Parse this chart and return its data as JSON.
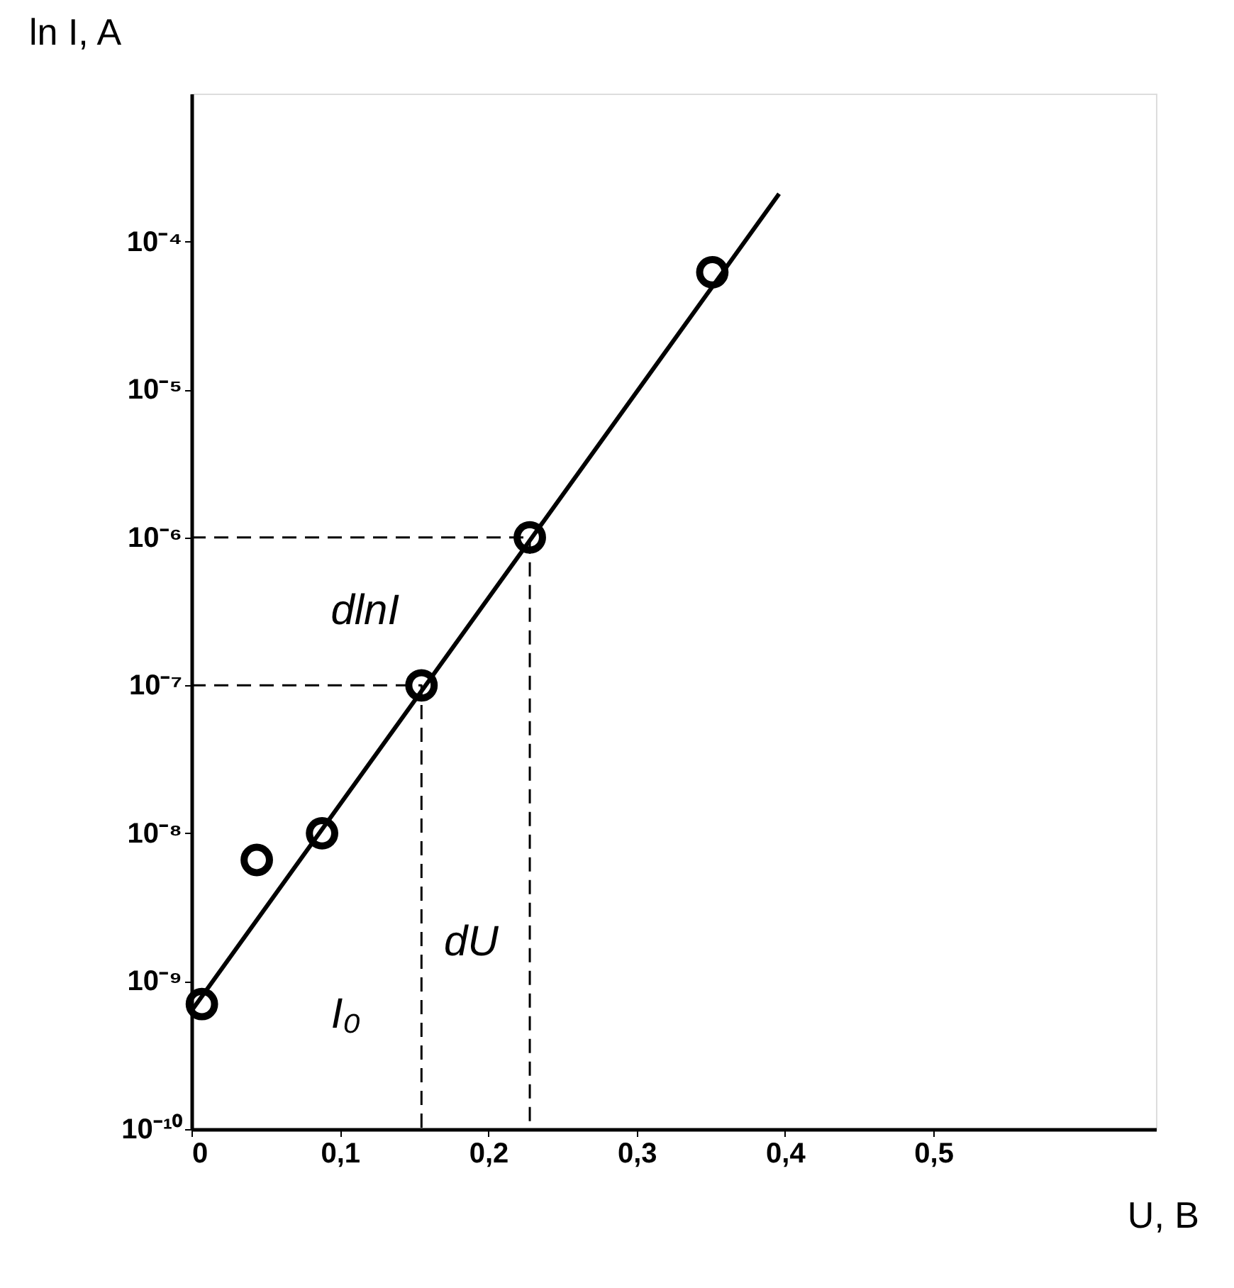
{
  "chart_data": {
    "type": "scatter",
    "xlabel": "U, B",
    "ylabel": "ln I, A",
    "log": "y",
    "grid": false,
    "xlim": [
      0,
      0.65
    ],
    "ylim": [
      1e-10,
      0.001
    ],
    "xticks": [
      0,
      {
        "value": 0.1,
        "label": "0,1"
      },
      {
        "value": 0.2,
        "label": "0,2"
      },
      {
        "value": 0.3,
        "label": "0,3"
      },
      {
        "value": 0.4,
        "label": "0,4"
      },
      {
        "value": 0.5,
        "label": "0,5"
      }
    ],
    "yticks": [
      {
        "value": 1e-10,
        "label": "10⁻¹⁰"
      },
      {
        "value": 1e-09,
        "label": "10⁻⁹"
      },
      {
        "value": 1e-08,
        "label": "10⁻⁸"
      },
      {
        "value": 1e-07,
        "label": "10⁻⁷"
      },
      {
        "value": 1e-06,
        "label": "10⁻⁶"
      },
      {
        "value": 1e-05,
        "label": "10⁻⁵"
      },
      {
        "value": 0.0001,
        "label": "10⁻⁴"
      }
    ],
    "series": [
      {
        "type": "scatter",
        "marker": "circle",
        "color": "#000000",
        "x": [
          0.007,
          0.044,
          0.088,
          0.155,
          0.228,
          0.351
        ],
        "values": [
          7e-10,
          6.6e-09,
          1e-08,
          1e-07,
          1e-06,
          6.2e-05
        ]
      },
      {
        "type": "line",
        "line_style": "solid",
        "color": "#000000",
        "x": [
          0,
          0.396
        ],
        "values": [
          6.3e-10,
          0.00021
        ]
      },
      {
        "type": "line",
        "line_style": "dashed",
        "color": "#000000",
        "x": [
          0,
          0.228,
          0.228
        ],
        "values": [
          1e-06,
          1e-06,
          1e-10
        ]
      },
      {
        "type": "line",
        "line_style": "dashed",
        "color": "#000000",
        "x": [
          0,
          0.155,
          0.155
        ],
        "values": [
          1e-07,
          1e-07,
          1e-10
        ]
      }
    ],
    "annotations": [
      "dlnI",
      "dU",
      "I₀"
    ]
  }
}
